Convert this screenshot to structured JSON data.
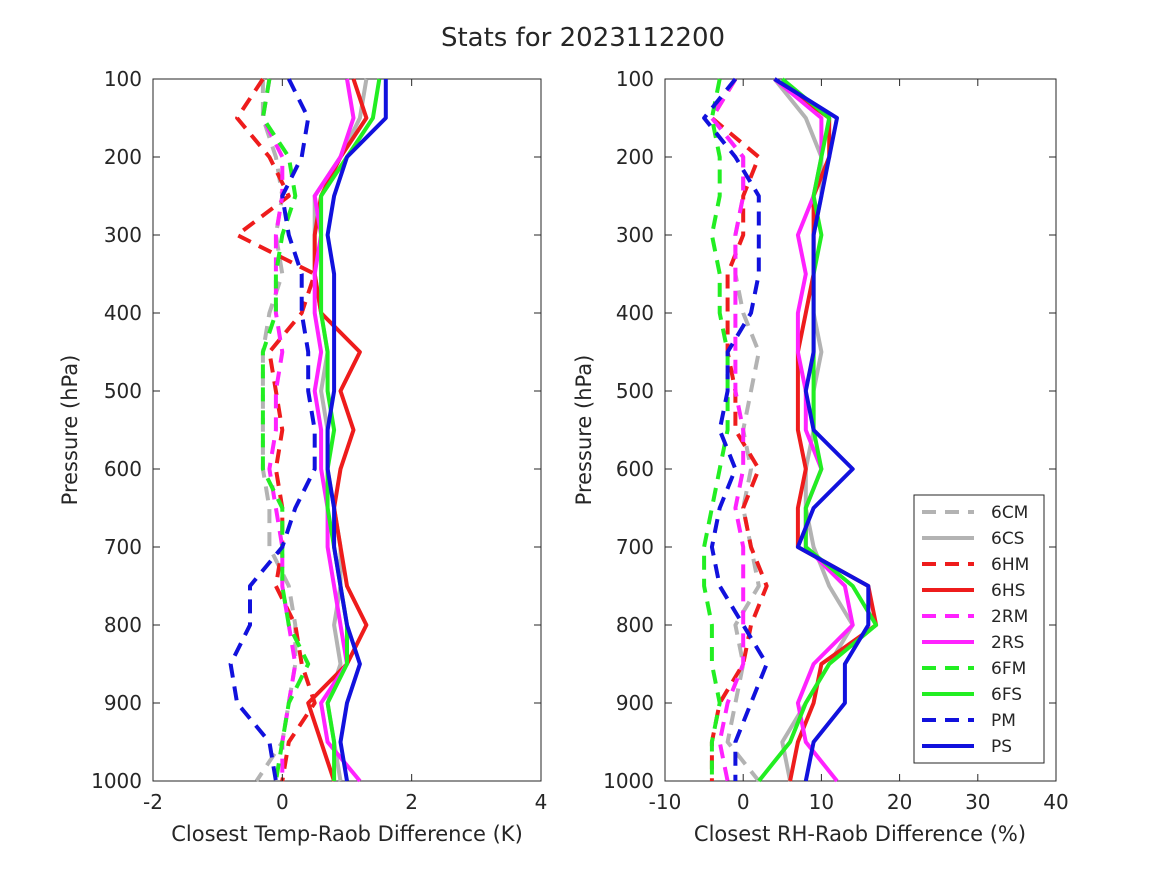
{
  "title": "Stats for 2023112200",
  "styles": {
    "6CM": {
      "color": "#b3b3b3",
      "dash": true
    },
    "6CS": {
      "color": "#b3b3b3",
      "dash": false
    },
    "6HM": {
      "color": "#ee1c1c",
      "dash": true
    },
    "6HS": {
      "color": "#ee1c1c",
      "dash": false
    },
    "2RM": {
      "color": "#ff22ff",
      "dash": true
    },
    "2RS": {
      "color": "#ff22ff",
      "dash": false
    },
    "6FM": {
      "color": "#22ee22",
      "dash": true
    },
    "6FS": {
      "color": "#22ee22",
      "dash": false
    },
    "PM": {
      "color": "#1111dd",
      "dash": true
    },
    "PS": {
      "color": "#1111dd",
      "dash": false
    }
  },
  "legend_order": [
    "6CM",
    "6CS",
    "6HM",
    "6HS",
    "2RM",
    "2RS",
    "6FM",
    "6FS",
    "PM",
    "PS"
  ],
  "chart_data": [
    {
      "type": "line",
      "orientation": "vertical-profile",
      "xlabel": "Closest Temp-Raob Difference (K)",
      "ylabel": "Pressure (hPa)",
      "xlim": [
        -2,
        4
      ],
      "ylim": [
        1000,
        100
      ],
      "y_reversed": true,
      "xticks": [
        "-2",
        "0",
        "2",
        "4"
      ],
      "yticks": [
        "100",
        "200",
        "300",
        "400",
        "500",
        "600",
        "700",
        "800",
        "900",
        "1000"
      ],
      "legend": "none",
      "pressure": [
        100,
        150,
        200,
        250,
        300,
        350,
        400,
        450,
        500,
        550,
        600,
        650,
        700,
        750,
        800,
        850,
        900,
        950,
        1000
      ],
      "series": [
        {
          "name": "6CM",
          "values": [
            -0.3,
            -0.3,
            -0.1,
            0.0,
            -0.1,
            0.0,
            -0.2,
            -0.3,
            -0.3,
            -0.3,
            -0.3,
            -0.2,
            -0.2,
            0.1,
            0.2,
            0.2,
            0.1,
            0.0,
            -0.4
          ]
        },
        {
          "name": "6CS",
          "values": [
            1.3,
            1.2,
            0.9,
            0.5,
            0.5,
            0.5,
            0.6,
            0.7,
            0.6,
            0.7,
            0.7,
            0.8,
            0.9,
            0.9,
            0.8,
            0.9,
            0.7,
            0.8,
            0.9
          ]
        },
        {
          "name": "6HM",
          "values": [
            -0.3,
            -0.7,
            -0.2,
            0.1,
            -0.7,
            0.5,
            0.3,
            -0.2,
            -0.1,
            0.0,
            -0.1,
            0.0,
            0.0,
            -0.1,
            0.2,
            0.3,
            0.5,
            0.1,
            0.0
          ]
        },
        {
          "name": "6HS",
          "values": [
            1.1,
            1.3,
            0.9,
            0.6,
            0.5,
            0.5,
            0.6,
            1.2,
            0.9,
            1.1,
            0.9,
            0.8,
            0.9,
            1.0,
            1.3,
            1.0,
            0.4,
            0.6,
            0.8
          ]
        },
        {
          "name": "2RM",
          "values": [
            -0.2,
            -0.3,
            0.0,
            0.0,
            -0.1,
            -0.1,
            -0.1,
            0.0,
            -0.1,
            -0.1,
            -0.2,
            -0.1,
            0.0,
            0.0,
            0.1,
            0.2,
            0.1,
            0.0,
            0.0
          ]
        },
        {
          "name": "2RS",
          "values": [
            1.0,
            1.1,
            0.9,
            0.5,
            0.6,
            0.5,
            0.5,
            0.6,
            0.5,
            0.6,
            0.6,
            0.7,
            0.7,
            0.8,
            0.9,
            1.0,
            0.6,
            0.7,
            1.2
          ]
        },
        {
          "name": "6FM",
          "values": [
            -0.2,
            -0.3,
            0.1,
            0.2,
            0.0,
            -0.1,
            -0.1,
            -0.3,
            -0.3,
            -0.3,
            -0.3,
            0.0,
            0.0,
            0.0,
            0.1,
            0.4,
            0.1,
            0.0,
            -0.1
          ]
        },
        {
          "name": "6FS",
          "values": [
            1.5,
            1.4,
            1.0,
            0.6,
            0.6,
            0.6,
            0.6,
            0.7,
            0.7,
            0.8,
            0.7,
            0.7,
            0.8,
            0.9,
            1.0,
            1.0,
            0.7,
            0.8,
            0.8
          ]
        },
        {
          "name": "PM",
          "values": [
            0.1,
            0.4,
            0.3,
            0.0,
            0.1,
            0.3,
            0.3,
            0.4,
            0.4,
            0.5,
            0.5,
            0.2,
            0.0,
            -0.5,
            -0.5,
            -0.8,
            -0.7,
            -0.2,
            -0.1
          ]
        },
        {
          "name": "PS",
          "values": [
            1.6,
            1.6,
            1.0,
            0.8,
            0.7,
            0.8,
            0.8,
            0.8,
            0.8,
            0.7,
            0.7,
            0.8,
            0.8,
            0.9,
            1.0,
            1.2,
            1.0,
            0.9,
            1.0
          ]
        }
      ]
    },
    {
      "type": "line",
      "orientation": "vertical-profile",
      "xlabel": "Closest RH-Raob Difference (%)",
      "ylabel": "Pressure (hPa)",
      "xlim": [
        -10,
        40
      ],
      "ylim": [
        1000,
        100
      ],
      "y_reversed": true,
      "xticks": [
        "-10",
        "0",
        "10",
        "20",
        "30",
        "40"
      ],
      "yticks": [
        "100",
        "200",
        "300",
        "400",
        "500",
        "600",
        "700",
        "800",
        "900",
        "1000"
      ],
      "legend": "bottom-right",
      "pressure": [
        100,
        150,
        200,
        250,
        300,
        350,
        400,
        450,
        500,
        550,
        600,
        650,
        700,
        750,
        800,
        850,
        900,
        950,
        1000
      ],
      "series": [
        {
          "name": "6CM",
          "values": [
            -1,
            -4,
            0,
            0,
            -1,
            -1,
            0,
            2,
            1,
            0,
            1,
            0,
            1,
            2,
            -1,
            0,
            -1,
            -2,
            2
          ]
        },
        {
          "name": "6CS",
          "values": [
            4,
            8,
            10,
            10,
            9,
            9,
            9,
            10,
            9,
            9,
            8,
            8,
            9,
            11,
            14,
            11,
            8,
            5,
            6
          ]
        },
        {
          "name": "6HM",
          "values": [
            -1,
            -4,
            2,
            0,
            0,
            -2,
            -2,
            -2,
            -1,
            -1,
            2,
            0,
            1,
            3,
            1,
            0,
            -3,
            -4,
            -4
          ]
        },
        {
          "name": "6HS",
          "values": [
            4,
            11,
            11,
            9,
            9,
            9,
            8,
            7,
            7,
            7,
            8,
            7,
            7,
            16,
            17,
            10,
            9,
            7,
            6
          ]
        },
        {
          "name": "2RM",
          "values": [
            -1,
            -4,
            0,
            0,
            -1,
            -1,
            -1,
            -1,
            -1,
            0,
            0,
            -1,
            0,
            0,
            0,
            0,
            -2,
            -3,
            -2
          ]
        },
        {
          "name": "2RS",
          "values": [
            4,
            10,
            10,
            9,
            7,
            8,
            7,
            7,
            8,
            8,
            10,
            8,
            8,
            13,
            14,
            9,
            7,
            8,
            12
          ]
        },
        {
          "name": "6FM",
          "values": [
            -3,
            -4,
            -3,
            -3,
            -4,
            -3,
            -3,
            -2,
            -2,
            -2,
            -3,
            -4,
            -5,
            -5,
            -4,
            -4,
            -3,
            -4,
            -4
          ]
        },
        {
          "name": "6FS",
          "values": [
            5,
            11,
            10,
            9,
            10,
            9,
            9,
            9,
            9,
            9,
            10,
            8,
            8,
            14,
            17,
            11,
            8,
            6,
            2
          ]
        },
        {
          "name": "PM",
          "values": [
            -1,
            -5,
            -1,
            2,
            2,
            2,
            1,
            -2,
            -2,
            -3,
            -1,
            -3,
            -4,
            -3,
            0,
            3,
            1,
            -1,
            -1
          ]
        },
        {
          "name": "PS",
          "values": [
            4,
            12,
            11,
            10,
            9,
            9,
            9,
            9,
            8,
            9,
            14,
            9,
            7,
            16,
            16,
            13,
            13,
            9,
            8
          ]
        }
      ]
    }
  ]
}
